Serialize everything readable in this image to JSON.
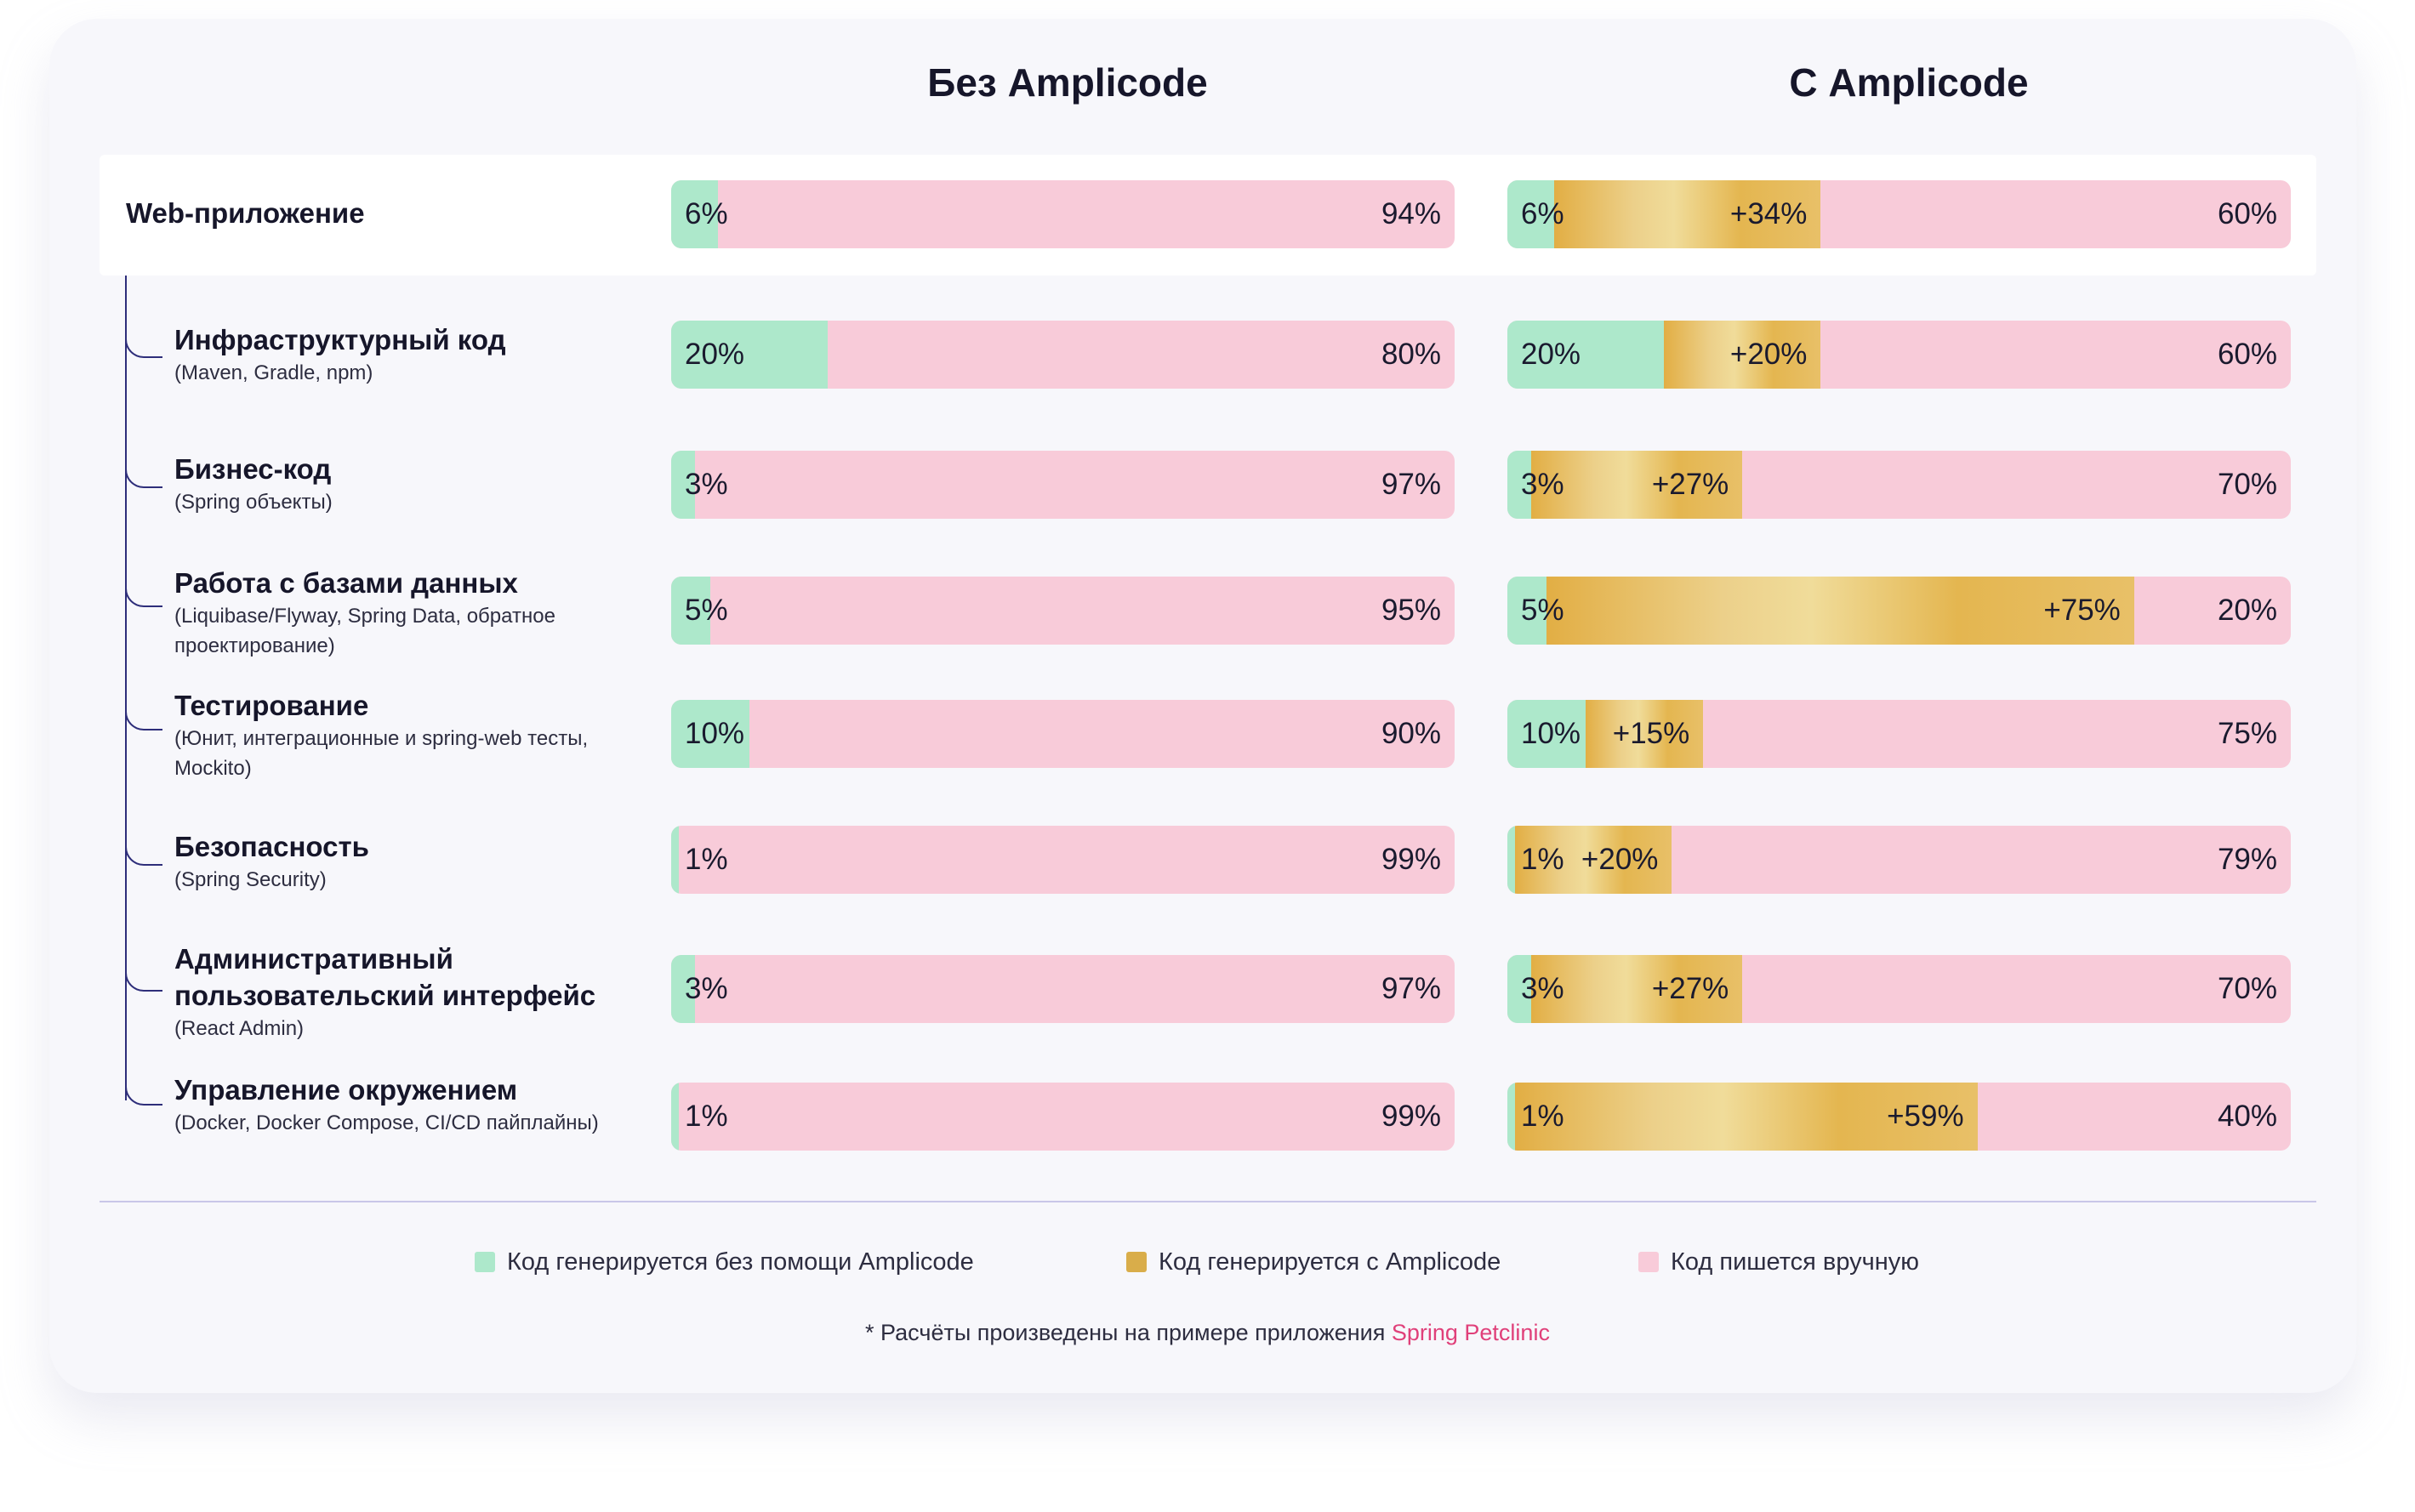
{
  "columns": {
    "without": "Без Amplicode",
    "with": "С Amplicode"
  },
  "colors": {
    "generated_without": "#ade8cb",
    "generated_with": "#d9ad4a",
    "manual": "#f8cbd9"
  },
  "chart_data": {
    "type": "bar",
    "title": "",
    "xlabel": "",
    "ylabel": "",
    "series": [
      {
        "name": "Код генерируется без помощи Amplicode"
      },
      {
        "name": "Код генерируется с Amplicode"
      },
      {
        "name": "Код пишется вручную"
      }
    ],
    "rows": [
      {
        "label": "Web-приложение",
        "sub": "",
        "without": {
          "green": 6,
          "manual": 94,
          "green_label": "6%",
          "manual_label": "94%"
        },
        "with": {
          "green": 6,
          "gold": 34,
          "manual": 60,
          "green_label": "6%",
          "gold_label": "+34%",
          "manual_label": "60%"
        }
      },
      {
        "label": "Инфраструктурный код",
        "sub": "(Maven, Gradle, npm)",
        "without": {
          "green": 20,
          "manual": 80,
          "green_label": "20%",
          "manual_label": "80%"
        },
        "with": {
          "green": 20,
          "gold": 20,
          "manual": 60,
          "green_label": "20%",
          "gold_label": "+20%",
          "manual_label": "60%"
        }
      },
      {
        "label": "Бизнес-код",
        "sub": "(Spring объекты)",
        "without": {
          "green": 3,
          "manual": 97,
          "green_label": "3%",
          "manual_label": "97%"
        },
        "with": {
          "green": 3,
          "gold": 27,
          "manual": 70,
          "green_label": "3%",
          "gold_label": "+27%",
          "manual_label": "70%"
        }
      },
      {
        "label": "Работа с базами данных",
        "sub": "(Liquibase/Flyway, Spring Data, обратное проектирование)",
        "without": {
          "green": 5,
          "manual": 95,
          "green_label": "5%",
          "manual_label": "95%"
        },
        "with": {
          "green": 5,
          "gold": 75,
          "manual": 20,
          "green_label": "5%",
          "gold_label": "+75%",
          "manual_label": "20%"
        }
      },
      {
        "label": "Тестирование",
        "sub": "(Юнит, интеграционные и spring-web тесты, Mockito)",
        "without": {
          "green": 10,
          "manual": 90,
          "green_label": "10%",
          "manual_label": "90%"
        },
        "with": {
          "green": 10,
          "gold": 15,
          "manual": 75,
          "green_label": "10%",
          "gold_label": "+15%",
          "manual_label": "75%"
        }
      },
      {
        "label": "Безопасность",
        "sub": "(Spring Security)",
        "without": {
          "green": 1,
          "manual": 99,
          "green_label": "1%",
          "manual_label": "99%"
        },
        "with": {
          "green": 1,
          "gold": 20,
          "manual": 79,
          "green_label": "1%",
          "gold_label": "+20%",
          "manual_label": "79%"
        }
      },
      {
        "label": "Административный пользовательский интерфейс",
        "sub": "(React Admin)",
        "without": {
          "green": 3,
          "manual": 97,
          "green_label": "3%",
          "manual_label": "97%"
        },
        "with": {
          "green": 3,
          "gold": 27,
          "manual": 70,
          "green_label": "3%",
          "gold_label": "+27%",
          "manual_label": "70%"
        }
      },
      {
        "label": "Управление окружением",
        "sub": "(Docker, Docker Compose, CI/CD пайплайны)",
        "without": {
          "green": 1,
          "manual": 99,
          "green_label": "1%",
          "manual_label": "99%"
        },
        "with": {
          "green": 1,
          "gold": 59,
          "manual": 40,
          "green_label": "1%",
          "gold_label": "+59%",
          "manual_label": "40%"
        }
      }
    ]
  },
  "legend": {
    "generated_without": "Код генерируется без помощи Amplicode",
    "generated_with": "Код генерируется с Amplicode",
    "manual": "Код пишется вручную"
  },
  "footnote": {
    "text": "* Расчёты произведены на примере приложения ",
    "link": "Spring Petclinic"
  }
}
